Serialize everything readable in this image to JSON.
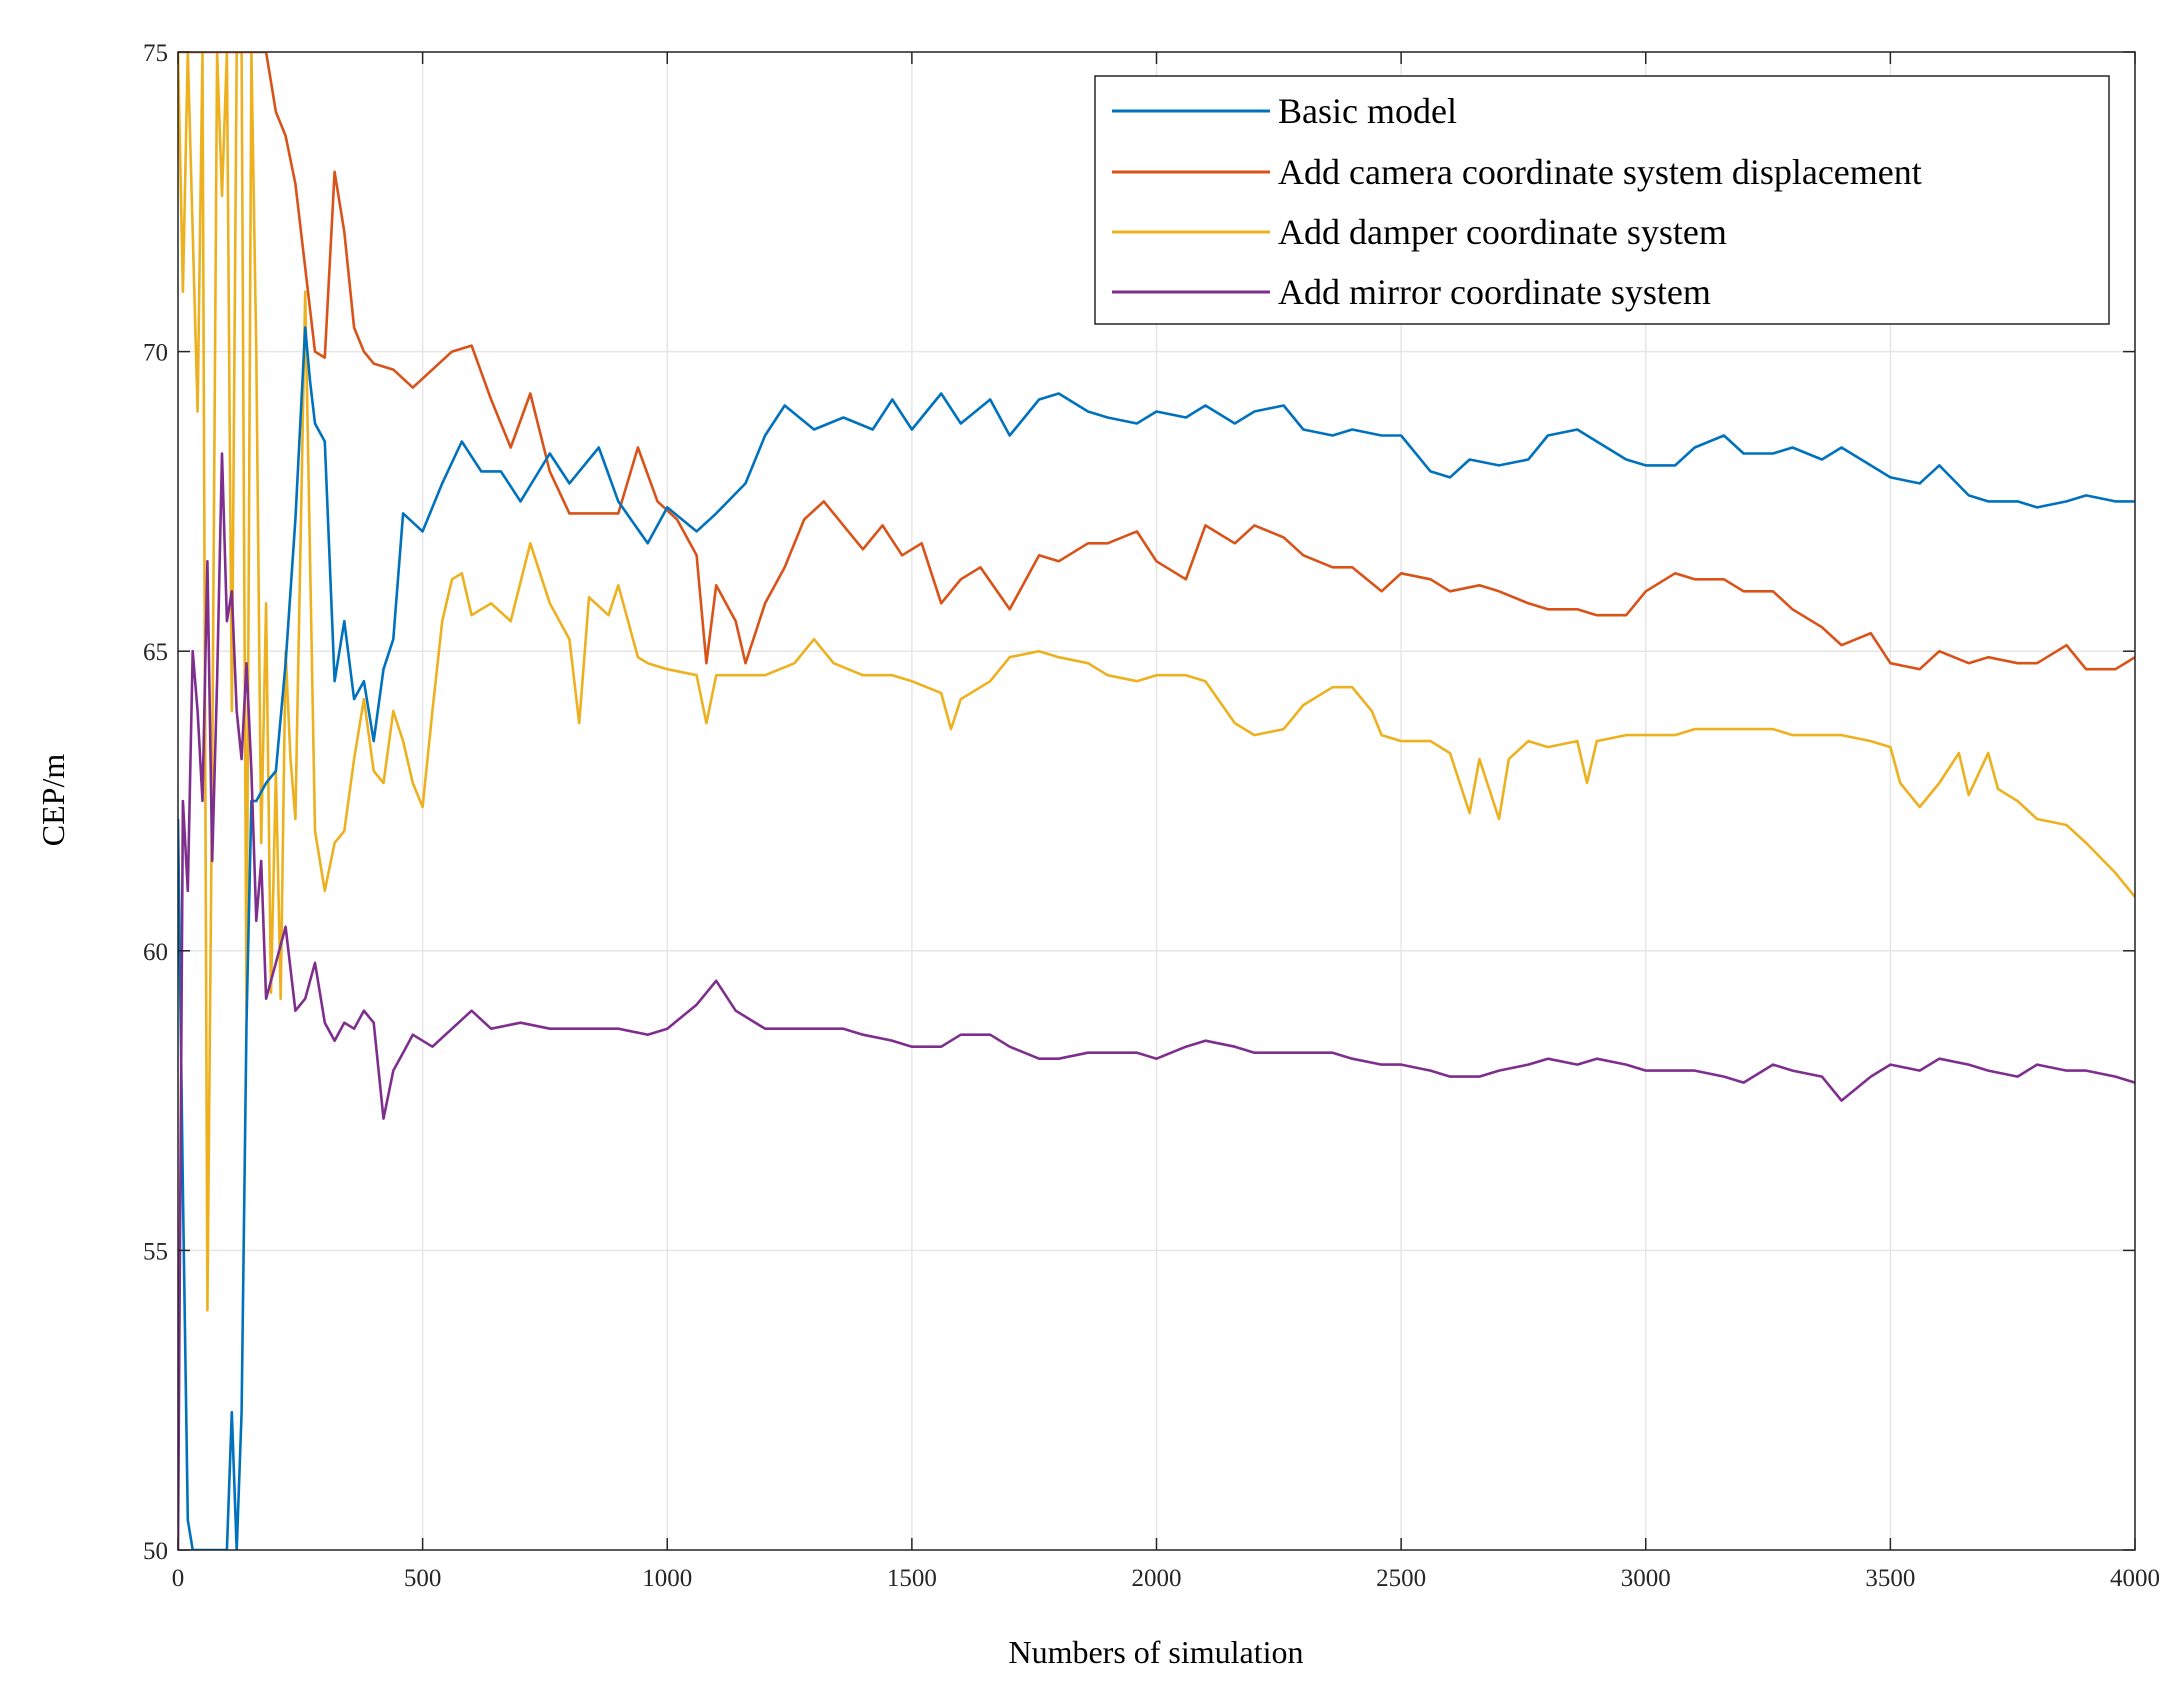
{
  "chart_data": {
    "type": "line",
    "title": "",
    "xlabel": "Numbers of simulation",
    "ylabel": "CEP/m",
    "xlim": [
      0,
      4000
    ],
    "ylim": [
      50,
      75
    ],
    "xticks": [
      0,
      500,
      1000,
      1500,
      2000,
      2500,
      3000,
      3500,
      4000
    ],
    "yticks": [
      50,
      55,
      60,
      65,
      70,
      75
    ],
    "xtick_labels": [
      "0",
      "500",
      "1000",
      "1500",
      "2000",
      "2500",
      "3000",
      "3500",
      "4000"
    ],
    "ytick_labels": [
      "50",
      "55",
      "60",
      "65",
      "70",
      "75"
    ],
    "grid": true,
    "legend_position": "top-right",
    "series": [
      {
        "name": "Basic model",
        "color": "#0072BD",
        "x": [
          0,
          10,
          20,
          30,
          40,
          60,
          80,
          100,
          110,
          120,
          130,
          140,
          150,
          160,
          180,
          200,
          220,
          240,
          260,
          270,
          280,
          300,
          320,
          340,
          360,
          380,
          400,
          420,
          440,
          460,
          500,
          540,
          580,
          620,
          660,
          700,
          760,
          800,
          860,
          900,
          960,
          1000,
          1060,
          1100,
          1160,
          1200,
          1240,
          1300,
          1360,
          1420,
          1460,
          1500,
          1560,
          1600,
          1660,
          1700,
          1760,
          1800,
          1860,
          1900,
          1960,
          2000,
          2060,
          2100,
          2160,
          2200,
          2260,
          2300,
          2360,
          2400,
          2460,
          2500,
          2560,
          2600,
          2640,
          2700,
          2760,
          2800,
          2860,
          2900,
          2960,
          3000,
          3060,
          3100,
          3160,
          3200,
          3260,
          3300,
          3360,
          3400,
          3460,
          3500,
          3560,
          3600,
          3660,
          3700,
          3760,
          3800,
          3860,
          3900,
          3960,
          4000
        ],
        "y": [
          62.2,
          56.0,
          50.5,
          50.0,
          50.0,
          50.0,
          50.0,
          50.0,
          52.3,
          50.0,
          52.3,
          58.8,
          62.5,
          62.5,
          62.8,
          63.0,
          64.8,
          67.2,
          70.4,
          69.5,
          68.8,
          68.5,
          64.5,
          65.5,
          64.2,
          64.5,
          63.5,
          64.7,
          65.2,
          67.3,
          67.0,
          67.8,
          68.5,
          68.0,
          68.0,
          67.5,
          68.3,
          67.8,
          68.4,
          67.5,
          66.8,
          67.4,
          67.0,
          67.3,
          67.8,
          68.6,
          69.1,
          68.7,
          68.9,
          68.7,
          69.2,
          68.7,
          69.3,
          68.8,
          69.2,
          68.6,
          69.2,
          69.3,
          69.0,
          68.9,
          68.8,
          69.0,
          68.9,
          69.1,
          68.8,
          69.0,
          69.1,
          68.7,
          68.6,
          68.7,
          68.6,
          68.6,
          68.0,
          67.9,
          68.2,
          68.1,
          68.2,
          68.6,
          68.7,
          68.5,
          68.2,
          68.1,
          68.1,
          68.4,
          68.6,
          68.3,
          68.3,
          68.4,
          68.2,
          68.4,
          68.1,
          67.9,
          67.8,
          68.1,
          67.6,
          67.5,
          67.5,
          67.4,
          67.5,
          67.6,
          67.5,
          67.5
        ]
      },
      {
        "name": "Add camera coordinate system displacement",
        "color": "#D95319",
        "x": [
          0,
          20,
          40,
          60,
          80,
          100,
          120,
          140,
          160,
          180,
          200,
          220,
          240,
          260,
          280,
          300,
          320,
          340,
          360,
          380,
          400,
          440,
          480,
          520,
          560,
          600,
          640,
          680,
          720,
          760,
          800,
          860,
          900,
          940,
          980,
          1020,
          1060,
          1080,
          1100,
          1140,
          1160,
          1200,
          1240,
          1280,
          1320,
          1360,
          1400,
          1440,
          1480,
          1520,
          1560,
          1600,
          1640,
          1700,
          1760,
          1800,
          1860,
          1900,
          1960,
          2000,
          2060,
          2100,
          2160,
          2200,
          2260,
          2300,
          2360,
          2400,
          2460,
          2500,
          2560,
          2600,
          2660,
          2700,
          2760,
          2800,
          2860,
          2900,
          2960,
          3000,
          3060,
          3100,
          3160,
          3200,
          3260,
          3300,
          3360,
          3400,
          3460,
          3500,
          3560,
          3600,
          3660,
          3700,
          3760,
          3800,
          3860,
          3900,
          3960,
          4000
        ],
        "y": [
          75.0,
          75.0,
          75.0,
          75.0,
          75.0,
          75.0,
          75.0,
          75.0,
          75.0,
          75.0,
          74.0,
          73.6,
          72.8,
          71.4,
          70.0,
          69.9,
          73.0,
          72.0,
          70.4,
          70.0,
          69.8,
          69.7,
          69.4,
          69.7,
          70.0,
          70.1,
          69.2,
          68.4,
          69.3,
          68.0,
          67.3,
          67.3,
          67.3,
          68.4,
          67.5,
          67.2,
          66.6,
          64.8,
          66.1,
          65.5,
          64.8,
          65.8,
          66.4,
          67.2,
          67.5,
          67.1,
          66.7,
          67.1,
          66.6,
          66.8,
          65.8,
          66.2,
          66.4,
          65.7,
          66.6,
          66.5,
          66.8,
          66.8,
          67.0,
          66.5,
          66.2,
          67.1,
          66.8,
          67.1,
          66.9,
          66.6,
          66.4,
          66.4,
          66.0,
          66.3,
          66.2,
          66.0,
          66.1,
          66.0,
          65.8,
          65.7,
          65.7,
          65.6,
          65.6,
          66.0,
          66.3,
          66.2,
          66.2,
          66.0,
          66.0,
          65.7,
          65.4,
          65.1,
          65.3,
          64.8,
          64.7,
          65.0,
          64.8,
          64.9,
          64.8,
          64.8,
          65.1,
          64.7,
          64.7,
          64.9
        ]
      },
      {
        "name": "Add damper coordinate system",
        "color": "#EDB120",
        "x": [
          0,
          10,
          20,
          30,
          40,
          50,
          60,
          70,
          80,
          90,
          100,
          110,
          120,
          130,
          140,
          150,
          160,
          170,
          180,
          190,
          200,
          210,
          220,
          230,
          240,
          260,
          280,
          300,
          320,
          340,
          360,
          380,
          400,
          420,
          440,
          460,
          480,
          500,
          520,
          540,
          560,
          580,
          600,
          640,
          680,
          720,
          760,
          800,
          820,
          840,
          880,
          900,
          940,
          960,
          1000,
          1060,
          1080,
          1100,
          1160,
          1200,
          1260,
          1300,
          1340,
          1400,
          1460,
          1500,
          1560,
          1580,
          1600,
          1660,
          1700,
          1760,
          1800,
          1860,
          1900,
          1960,
          2000,
          2060,
          2100,
          2160,
          2200,
          2260,
          2300,
          2360,
          2400,
          2440,
          2460,
          2500,
          2560,
          2600,
          2640,
          2660,
          2700,
          2720,
          2760,
          2800,
          2860,
          2880,
          2900,
          2960,
          3000,
          3060,
          3100,
          3160,
          3200,
          3260,
          3300,
          3360,
          3400,
          3460,
          3500,
          3520,
          3560,
          3600,
          3640,
          3660,
          3700,
          3720,
          3760,
          3800,
          3860,
          3900,
          3960,
          4000
        ],
        "y": [
          75.0,
          71.0,
          75.0,
          72.0,
          69.0,
          75.0,
          54.0,
          63.0,
          75.0,
          72.6,
          75.0,
          64.0,
          75.0,
          75.0,
          59.0,
          75.0,
          70.0,
          61.8,
          65.8,
          59.3,
          63.0,
          59.2,
          65.0,
          63.2,
          62.2,
          71.0,
          62.0,
          61.0,
          61.8,
          62.0,
          63.2,
          64.2,
          63.0,
          62.8,
          64.0,
          63.5,
          62.8,
          62.4,
          64.0,
          65.5,
          66.2,
          66.3,
          65.6,
          65.8,
          65.5,
          66.8,
          65.8,
          65.2,
          63.8,
          65.9,
          65.6,
          66.1,
          64.9,
          64.8,
          64.7,
          64.6,
          63.8,
          64.6,
          64.6,
          64.6,
          64.8,
          65.2,
          64.8,
          64.6,
          64.6,
          64.5,
          64.3,
          63.7,
          64.2,
          64.5,
          64.9,
          65.0,
          64.9,
          64.8,
          64.6,
          64.5,
          64.6,
          64.6,
          64.5,
          63.8,
          63.6,
          63.7,
          64.1,
          64.4,
          64.4,
          64.0,
          63.6,
          63.5,
          63.5,
          63.3,
          62.3,
          63.2,
          62.2,
          63.2,
          63.5,
          63.4,
          63.5,
          62.8,
          63.5,
          63.6,
          63.6,
          63.6,
          63.7,
          63.7,
          63.7,
          63.7,
          63.6,
          63.6,
          63.6,
          63.5,
          63.4,
          62.8,
          62.4,
          62.8,
          63.3,
          62.6,
          63.3,
          62.7,
          62.5,
          62.2,
          62.1,
          61.8,
          61.3,
          60.9
        ]
      },
      {
        "name": "Add mirror coordinate system",
        "color": "#7E2F8E",
        "x": [
          0,
          10,
          20,
          30,
          40,
          50,
          60,
          70,
          80,
          90,
          100,
          110,
          120,
          130,
          140,
          150,
          160,
          170,
          180,
          200,
          220,
          240,
          260,
          280,
          300,
          320,
          340,
          360,
          380,
          400,
          420,
          440,
          460,
          480,
          520,
          560,
          600,
          640,
          700,
          760,
          800,
          860,
          900,
          960,
          1000,
          1060,
          1100,
          1140,
          1200,
          1260,
          1300,
          1360,
          1400,
          1460,
          1500,
          1560,
          1600,
          1660,
          1700,
          1760,
          1800,
          1860,
          1900,
          1960,
          2000,
          2060,
          2100,
          2160,
          2200,
          2260,
          2300,
          2360,
          2400,
          2460,
          2500,
          2560,
          2600,
          2660,
          2700,
          2760,
          2800,
          2860,
          2900,
          2960,
          3000,
          3060,
          3100,
          3160,
          3200,
          3260,
          3300,
          3360,
          3400,
          3460,
          3500,
          3560,
          3600,
          3660,
          3700,
          3760,
          3800,
          3860,
          3900,
          3960,
          4000
        ],
        "y": [
          50.0,
          62.5,
          61.0,
          65.0,
          64.0,
          62.5,
          66.5,
          61.5,
          64.5,
          68.3,
          65.5,
          66.0,
          64.0,
          63.2,
          64.8,
          63.0,
          60.5,
          61.5,
          59.2,
          59.8,
          60.4,
          59.0,
          59.2,
          59.8,
          58.8,
          58.5,
          58.8,
          58.7,
          59.0,
          58.8,
          57.2,
          58.0,
          58.3,
          58.6,
          58.4,
          58.7,
          59.0,
          58.7,
          58.8,
          58.7,
          58.7,
          58.7,
          58.7,
          58.6,
          58.7,
          59.1,
          59.5,
          59.0,
          58.7,
          58.7,
          58.7,
          58.7,
          58.6,
          58.5,
          58.4,
          58.4,
          58.6,
          58.6,
          58.4,
          58.2,
          58.2,
          58.3,
          58.3,
          58.3,
          58.2,
          58.4,
          58.5,
          58.4,
          58.3,
          58.3,
          58.3,
          58.3,
          58.2,
          58.1,
          58.1,
          58.0,
          57.9,
          57.9,
          58.0,
          58.1,
          58.2,
          58.1,
          58.2,
          58.1,
          58.0,
          58.0,
          58.0,
          57.9,
          57.8,
          58.1,
          58.0,
          57.9,
          57.5,
          57.9,
          58.1,
          58.0,
          58.2,
          58.1,
          58.0,
          57.9,
          58.1,
          58.0,
          58.0,
          57.9,
          57.8
        ]
      }
    ]
  }
}
